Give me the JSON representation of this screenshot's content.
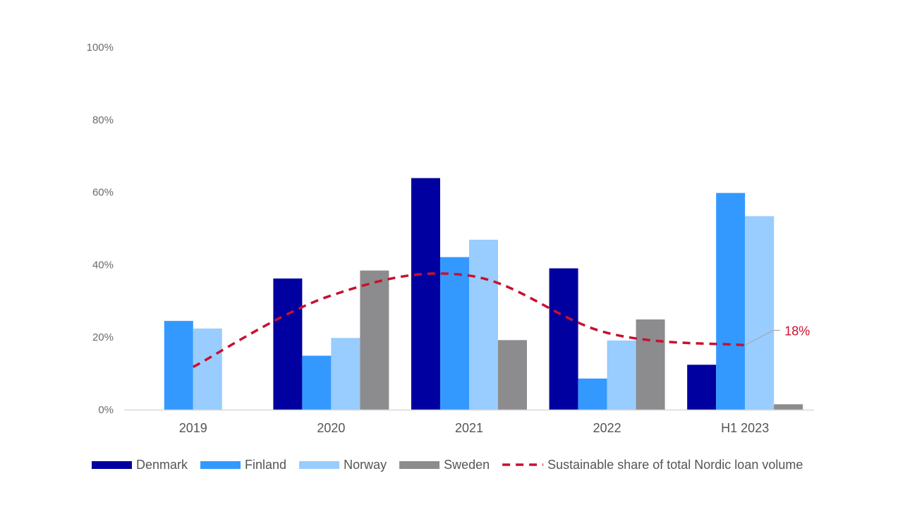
{
  "chart_data": {
    "type": "bar",
    "title": "",
    "xlabel": "",
    "ylabel": "",
    "ylim": [
      0,
      100
    ],
    "yticks": [
      0,
      20,
      40,
      60,
      80,
      100
    ],
    "ytick_labels": [
      "0%",
      "20%",
      "40%",
      "60%",
      "80%",
      "100%"
    ],
    "grid": false,
    "legend_position": "bottom",
    "categories": [
      "2019",
      "2020",
      "2021",
      "2022",
      "H1 2023"
    ],
    "series": [
      {
        "name": "Denmark",
        "type": "bar",
        "color": "#0000A0",
        "values": [
          0,
          36.2,
          63.9,
          39.0,
          12.4
        ]
      },
      {
        "name": "Finland",
        "type": "bar",
        "color": "#3399FF",
        "values": [
          24.5,
          14.9,
          42.1,
          8.6,
          59.8
        ]
      },
      {
        "name": "Norway",
        "type": "bar",
        "color": "#99CCFF",
        "values": [
          22.4,
          19.8,
          46.9,
          19.1,
          53.4
        ]
      },
      {
        "name": "Sweden",
        "type": "bar",
        "color": "#8C8C8E",
        "values": [
          0,
          38.4,
          19.2,
          24.9,
          1.5
        ]
      },
      {
        "name": "Sustainable share of total Nordic loan volume",
        "type": "line",
        "style": "dashed",
        "color": "#C8102E",
        "values": [
          11.8,
          31.5,
          37.0,
          21.2,
          17.8
        ]
      }
    ],
    "annotations": [
      {
        "text": "18%",
        "category": "H1 2023",
        "series": "Sustainable share of total Nordic loan volume",
        "color": "#C8102E"
      }
    ]
  }
}
